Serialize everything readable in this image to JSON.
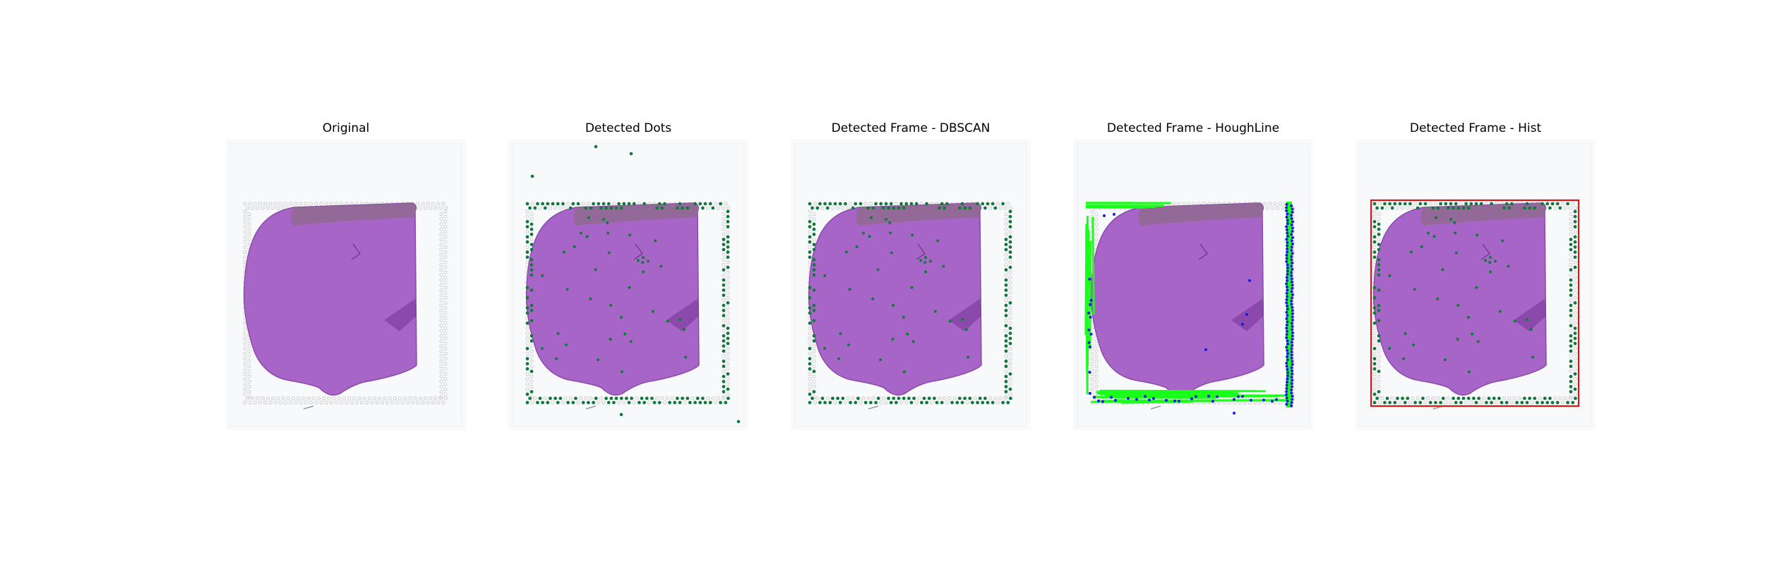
{
  "figure": {
    "panels": [
      {
        "id": "original",
        "title": "Original",
        "overlay": "none"
      },
      {
        "id": "detected-dots",
        "title": "Detected Dots",
        "overlay": "dots"
      },
      {
        "id": "dbscan",
        "title": "Detected Frame - DBSCAN",
        "overlay": "dbscan"
      },
      {
        "id": "houghline",
        "title": "Detected Frame - HoughLine",
        "overlay": "hough"
      },
      {
        "id": "hist",
        "title": "Detected Frame - Hist",
        "overlay": "hist"
      }
    ]
  },
  "colors": {
    "background": "#ffffff",
    "slide": "#f7f9fb",
    "tissue_fill": "#a865c8",
    "tissue_edge": "#8a4aa8",
    "tissue_top_band": "#8f6a8e",
    "fiducial_gray": "#c9c4c4",
    "dot_green": "#0f7a3c",
    "dot_blue": "#1a1adf",
    "line_bright_green": "#19ff19",
    "frame_red": "#d81818"
  }
}
